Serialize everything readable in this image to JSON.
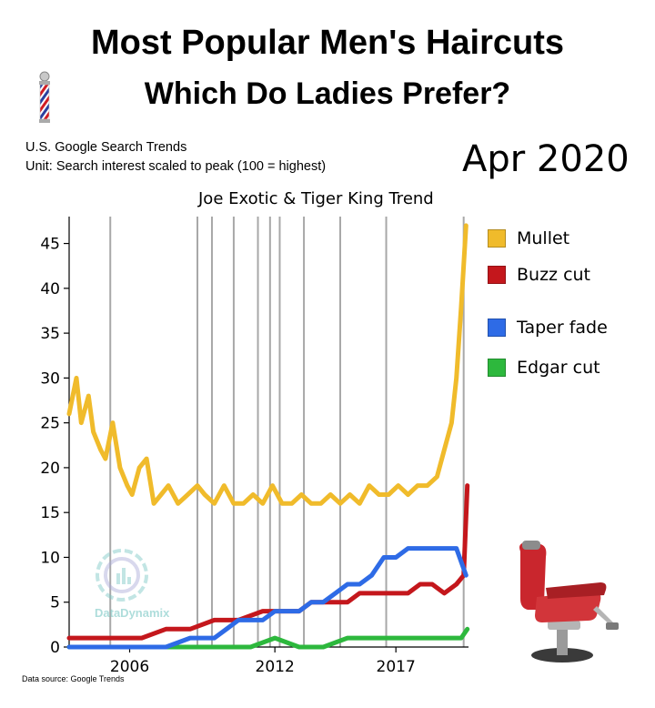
{
  "header": {
    "title_line1": "Most Popular Men's Haircuts",
    "title_line2": "Which Do Ladies Prefer?",
    "subtitle_line1": "U.S. Google Search Trends",
    "subtitle_line2": "Unit: Search interest scaled to peak (100 = highest)",
    "current_date": "Apr 2020",
    "event_note": "Joe Exotic & Tiger King Trend"
  },
  "footer": {
    "source": "Data source: Google Trends"
  },
  "watermark": {
    "text": "DataDynamix",
    "color": "#7ac7c4"
  },
  "icons": {
    "barber_pole": "barber-pole-icon",
    "barber_chair": "barber-chair-icon"
  },
  "chart_data": {
    "type": "line",
    "xlim": [
      2003.5,
      2020.0
    ],
    "ylim": [
      0,
      48
    ],
    "x_ticks": [
      2006,
      2012,
      2017
    ],
    "x_tick_labels": [
      "2006",
      "2012",
      "2017"
    ],
    "y_ticks": [
      0,
      5,
      10,
      15,
      20,
      25,
      30,
      35,
      40,
      45
    ],
    "y_tick_labels": [
      "0",
      "5",
      "10",
      "15",
      "20",
      "25",
      "30",
      "35",
      "40",
      "45"
    ],
    "event_lines_x": [
      2005.2,
      2008.8,
      2009.4,
      2010.3,
      2011.3,
      2011.8,
      2012.2,
      2013.2,
      2014.7,
      2016.6,
      2019.8
    ],
    "legend_position": "right",
    "series": [
      {
        "name": "Mullet",
        "color": "#f0bb2b",
        "x": [
          2003.5,
          2003.8,
          2004.0,
          2004.3,
          2004.5,
          2004.8,
          2005.0,
          2005.3,
          2005.6,
          2005.9,
          2006.1,
          2006.4,
          2006.7,
          2007.0,
          2007.3,
          2007.6,
          2008.0,
          2008.4,
          2008.8,
          2009.1,
          2009.5,
          2009.9,
          2010.3,
          2010.7,
          2011.1,
          2011.5,
          2011.9,
          2012.3,
          2012.7,
          2013.1,
          2013.5,
          2013.9,
          2014.3,
          2014.7,
          2015.1,
          2015.5,
          2015.9,
          2016.3,
          2016.7,
          2017.1,
          2017.5,
          2017.9,
          2018.3,
          2018.7,
          2019.0,
          2019.3,
          2019.5,
          2019.7,
          2019.9
        ],
        "values": [
          26,
          30,
          25,
          28,
          24,
          22,
          21,
          25,
          20,
          18,
          17,
          20,
          21,
          16,
          17,
          18,
          16,
          17,
          18,
          17,
          16,
          18,
          16,
          16,
          17,
          16,
          18,
          16,
          16,
          17,
          16,
          16,
          17,
          16,
          17,
          16,
          18,
          17,
          17,
          18,
          17,
          18,
          18,
          19,
          22,
          25,
          30,
          38,
          47
        ]
      },
      {
        "name": "Buzz cut",
        "color": "#c4171c",
        "x": [
          2003.5,
          2004.5,
          2005.5,
          2006.5,
          2007.5,
          2008.5,
          2009.5,
          2010.5,
          2011.5,
          2012.5,
          2013.0,
          2013.5,
          2014.0,
          2014.5,
          2015.0,
          2015.5,
          2016.0,
          2016.5,
          2017.0,
          2017.5,
          2018.0,
          2018.5,
          2019.0,
          2019.5,
          2019.8,
          2019.95
        ],
        "values": [
          1,
          1,
          1,
          1,
          2,
          2,
          3,
          3,
          4,
          4,
          4,
          5,
          5,
          5,
          5,
          6,
          6,
          6,
          6,
          6,
          7,
          7,
          6,
          7,
          8,
          18
        ]
      },
      {
        "name": "Taper fade",
        "color": "#2e6be6",
        "x": [
          2003.5,
          2004.5,
          2005.5,
          2006.5,
          2007.5,
          2008.5,
          2009.5,
          2010.0,
          2010.5,
          2011.0,
          2011.5,
          2012.0,
          2012.5,
          2013.0,
          2013.5,
          2014.0,
          2014.5,
          2015.0,
          2015.5,
          2016.0,
          2016.5,
          2017.0,
          2017.5,
          2018.0,
          2018.5,
          2019.0,
          2019.5,
          2019.9
        ],
        "values": [
          0,
          0,
          0,
          0,
          0,
          1,
          1,
          2,
          3,
          3,
          3,
          4,
          4,
          4,
          5,
          5,
          6,
          7,
          7,
          8,
          10,
          10,
          11,
          11,
          11,
          11,
          11,
          8
        ]
      },
      {
        "name": "Edgar cut",
        "color": "#2db83d",
        "x": [
          2003.5,
          2005.0,
          2006.5,
          2008.0,
          2009.5,
          2011.0,
          2012.0,
          2013.0,
          2014.0,
          2015.0,
          2016.0,
          2017.0,
          2018.0,
          2019.0,
          2019.7,
          2019.95
        ],
        "values": [
          0,
          0,
          0,
          0,
          0,
          0,
          1,
          0,
          0,
          1,
          1,
          1,
          1,
          1,
          1,
          2
        ]
      }
    ]
  }
}
